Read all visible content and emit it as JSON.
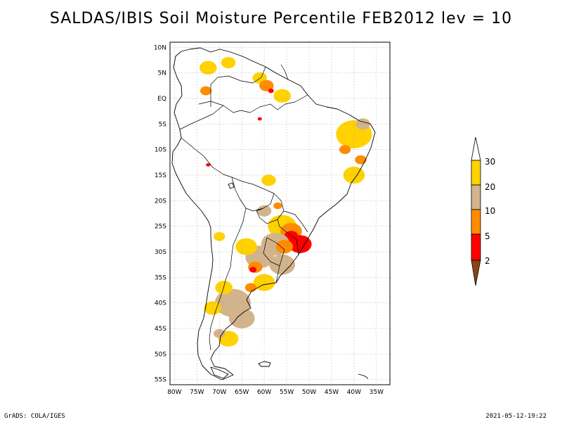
{
  "title": "SALDAS/IBIS Soil Moisture Percentile FEB2012 lev = 10",
  "footer": {
    "left": "GrADS: COLA/IGES",
    "right": "2021-05-12-19:22"
  },
  "map": {
    "lon_range": [
      -81,
      -32
    ],
    "lat_range": [
      -56,
      11
    ],
    "lat_ticks": [
      {
        "value": 10,
        "label": "10N"
      },
      {
        "value": 5,
        "label": "5N"
      },
      {
        "value": 0,
        "label": "EQ"
      },
      {
        "value": -5,
        "label": "5S"
      },
      {
        "value": -10,
        "label": "10S"
      },
      {
        "value": -15,
        "label": "15S"
      },
      {
        "value": -20,
        "label": "20S"
      },
      {
        "value": -25,
        "label": "25S"
      },
      {
        "value": -30,
        "label": "30S"
      },
      {
        "value": -35,
        "label": "35S"
      },
      {
        "value": -40,
        "label": "40S"
      },
      {
        "value": -45,
        "label": "45S"
      },
      {
        "value": -50,
        "label": "50S"
      },
      {
        "value": -55,
        "label": "55S"
      }
    ],
    "lon_ticks": [
      {
        "value": -80,
        "label": "80W"
      },
      {
        "value": -75,
        "label": "75W"
      },
      {
        "value": -70,
        "label": "70W"
      },
      {
        "value": -65,
        "label": "65W"
      },
      {
        "value": -60,
        "label": "60W"
      },
      {
        "value": -55,
        "label": "55W"
      },
      {
        "value": -50,
        "label": "50W"
      },
      {
        "value": -45,
        "label": "45W"
      },
      {
        "value": -40,
        "label": "40W"
      },
      {
        "value": -35,
        "label": "35W"
      }
    ],
    "grid": "dotted"
  },
  "legend": {
    "labels": [
      "30",
      "20",
      "10",
      "5",
      "2"
    ],
    "colors": {
      "above30": "#ffffff",
      "c20_30": "#ffd200",
      "c10_20": "#d2b48c",
      "c5_10": "#ff8c00",
      "c2_5": "#ff0000",
      "below2": "#8b4513"
    }
  },
  "regions": [
    {
      "cls": "c20_30",
      "lon": -72.5,
      "lat": 6,
      "r": 1.2
    },
    {
      "cls": "c20_30",
      "lon": -68,
      "lat": 7,
      "r": 1.0
    },
    {
      "cls": "c5_10",
      "lon": -73,
      "lat": 1.5,
      "r": 0.8
    },
    {
      "cls": "c20_30",
      "lon": -61,
      "lat": 4,
      "r": 1.0
    },
    {
      "cls": "c5_10",
      "lon": -59.5,
      "lat": 2.5,
      "r": 1.0
    },
    {
      "cls": "c2_5",
      "lon": -58.5,
      "lat": 1.5,
      "r": 0.4
    },
    {
      "cls": "c20_30",
      "lon": -56,
      "lat": 0.5,
      "r": 1.2
    },
    {
      "cls": "c20_30",
      "lon": -40,
      "lat": -7,
      "r": 2.5
    },
    {
      "cls": "c10_20",
      "lon": -38,
      "lat": -5,
      "r": 1.0
    },
    {
      "cls": "c5_10",
      "lon": -42,
      "lat": -10,
      "r": 0.8
    },
    {
      "cls": "c5_10",
      "lon": -38.5,
      "lat": -12,
      "r": 0.8
    },
    {
      "cls": "c20_30",
      "lon": -40,
      "lat": -15,
      "r": 1.5
    },
    {
      "cls": "c20_30",
      "lon": -59,
      "lat": -16,
      "r": 1.0
    },
    {
      "cls": "c10_20",
      "lon": -60,
      "lat": -22,
      "r": 1.0
    },
    {
      "cls": "c5_10",
      "lon": -57,
      "lat": -21,
      "r": 0.6
    },
    {
      "cls": "c20_30",
      "lon": -56,
      "lat": -25,
      "r": 2.0
    },
    {
      "cls": "c5_10",
      "lon": -54,
      "lat": -26,
      "r": 1.5
    },
    {
      "cls": "c2_5",
      "lon": -54,
      "lat": -27,
      "r": 1.0
    },
    {
      "cls": "c10_20",
      "lon": -57.5,
      "lat": -28.5,
      "r": 2.0
    },
    {
      "cls": "c2_5",
      "lon": -52,
      "lat": -28.5,
      "r": 1.6
    },
    {
      "cls": "c5_10",
      "lon": -55.5,
      "lat": -29,
      "r": 1.2
    },
    {
      "cls": "c10_20",
      "lon": -56,
      "lat": -32.5,
      "r": 1.8
    },
    {
      "cls": "c10_20",
      "lon": -61,
      "lat": -31,
      "r": 2.0
    },
    {
      "cls": "c20_30",
      "lon": -64,
      "lat": -29,
      "r": 1.5
    },
    {
      "cls": "c5_10",
      "lon": -62,
      "lat": -33,
      "r": 1.0
    },
    {
      "cls": "c2_5",
      "lon": -62.5,
      "lat": -33.5,
      "r": 0.5
    },
    {
      "cls": "c20_30",
      "lon": -60,
      "lat": -36,
      "r": 1.5
    },
    {
      "cls": "c5_10",
      "lon": -63,
      "lat": -37,
      "r": 0.8
    },
    {
      "cls": "c10_20",
      "lon": -67,
      "lat": -40,
      "r": 2.5
    },
    {
      "cls": "c10_20",
      "lon": -65,
      "lat": -43,
      "r": 1.8
    },
    {
      "cls": "c20_30",
      "lon": -69,
      "lat": -37,
      "r": 1.2
    },
    {
      "cls": "c20_30",
      "lon": -71.5,
      "lat": -41,
      "r": 1.2
    },
    {
      "cls": "c20_30",
      "lon": -68,
      "lat": -47,
      "r": 1.4
    },
    {
      "cls": "c10_20",
      "lon": -70,
      "lat": -46,
      "r": 0.8
    },
    {
      "cls": "c20_30",
      "lon": -70,
      "lat": -27,
      "r": 0.8
    },
    {
      "cls": "c2_5",
      "lon": -72.5,
      "lat": -13,
      "r": 0.3
    },
    {
      "cls": "c2_5",
      "lon": -61,
      "lat": -4,
      "r": 0.3
    }
  ]
}
